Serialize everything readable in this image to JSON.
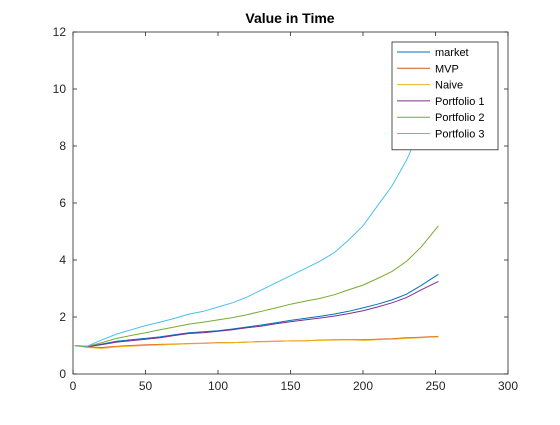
{
  "chart_data": {
    "type": "line",
    "title": "Value in Time",
    "xlabel": "",
    "ylabel": "",
    "xlim": [
      0,
      300
    ],
    "ylim": [
      0,
      12
    ],
    "xticks": [
      0,
      50,
      100,
      150,
      200,
      250,
      300
    ],
    "yticks": [
      0,
      2,
      4,
      6,
      8,
      10,
      12
    ],
    "grid": false,
    "legend_position": "top-right",
    "series": [
      {
        "name": "market",
        "color": "#0072BD",
        "x": [
          1,
          10,
          20,
          30,
          40,
          50,
          60,
          70,
          80,
          90,
          100,
          110,
          120,
          130,
          140,
          150,
          160,
          170,
          180,
          190,
          200,
          210,
          220,
          230,
          240,
          252
        ],
        "y": [
          1.0,
          0.97,
          1.05,
          1.15,
          1.2,
          1.25,
          1.3,
          1.38,
          1.45,
          1.48,
          1.52,
          1.58,
          1.65,
          1.72,
          1.8,
          1.88,
          1.95,
          2.02,
          2.1,
          2.2,
          2.32,
          2.45,
          2.6,
          2.8,
          3.1,
          3.5
        ]
      },
      {
        "name": "MVP",
        "color": "#D95319",
        "x": [
          1,
          10,
          20,
          30,
          40,
          50,
          60,
          70,
          80,
          90,
          100,
          110,
          120,
          130,
          140,
          150,
          160,
          170,
          180,
          190,
          200,
          210,
          220,
          230,
          240,
          252
        ],
        "y": [
          1.0,
          0.95,
          0.93,
          0.97,
          1.0,
          1.02,
          1.04,
          1.05,
          1.07,
          1.08,
          1.1,
          1.1,
          1.12,
          1.14,
          1.15,
          1.16,
          1.17,
          1.19,
          1.2,
          1.21,
          1.2,
          1.22,
          1.24,
          1.27,
          1.29,
          1.32
        ]
      },
      {
        "name": "Naive",
        "color": "#EDB120",
        "x": [
          1,
          10,
          20,
          30,
          40,
          50,
          60,
          70,
          80,
          90,
          100,
          110,
          120,
          130,
          140,
          150,
          160,
          170,
          180,
          190,
          200,
          210,
          220,
          230,
          240,
          252
        ],
        "y": [
          1.0,
          0.93,
          0.9,
          0.95,
          0.98,
          1.0,
          1.02,
          1.04,
          1.06,
          1.07,
          1.09,
          1.1,
          1.12,
          1.13,
          1.14,
          1.16,
          1.17,
          1.18,
          1.19,
          1.2,
          1.18,
          1.2,
          1.22,
          1.25,
          1.27,
          1.3
        ]
      },
      {
        "name": "Portfolio 1",
        "color": "#7E2F8E",
        "x": [
          1,
          10,
          20,
          30,
          40,
          50,
          60,
          70,
          80,
          90,
          100,
          110,
          120,
          130,
          140,
          150,
          160,
          170,
          180,
          190,
          200,
          210,
          220,
          230,
          240,
          252
        ],
        "y": [
          1.0,
          0.96,
          1.03,
          1.12,
          1.17,
          1.22,
          1.27,
          1.35,
          1.42,
          1.45,
          1.5,
          1.55,
          1.62,
          1.68,
          1.76,
          1.83,
          1.9,
          1.96,
          2.03,
          2.12,
          2.22,
          2.35,
          2.5,
          2.68,
          2.95,
          3.25
        ]
      },
      {
        "name": "Portfolio 2",
        "color": "#77AC30",
        "x": [
          1,
          10,
          20,
          30,
          40,
          50,
          60,
          70,
          80,
          90,
          100,
          110,
          120,
          130,
          140,
          150,
          160,
          170,
          180,
          190,
          200,
          210,
          220,
          230,
          240,
          252
        ],
        "y": [
          1.0,
          0.97,
          1.1,
          1.25,
          1.35,
          1.45,
          1.55,
          1.65,
          1.75,
          1.82,
          1.9,
          1.98,
          2.08,
          2.2,
          2.32,
          2.45,
          2.55,
          2.65,
          2.78,
          2.95,
          3.12,
          3.35,
          3.6,
          3.95,
          4.45,
          5.2
        ]
      },
      {
        "name": "Portfolio 3",
        "color": "#4DBEEE",
        "x": [
          1,
          10,
          20,
          30,
          40,
          50,
          60,
          70,
          80,
          90,
          100,
          110,
          120,
          130,
          140,
          150,
          160,
          170,
          180,
          190,
          200,
          210,
          220,
          230,
          237
        ],
        "y": [
          1.0,
          0.98,
          1.2,
          1.4,
          1.55,
          1.7,
          1.82,
          1.95,
          2.1,
          2.2,
          2.35,
          2.5,
          2.7,
          2.95,
          3.2,
          3.45,
          3.7,
          3.95,
          4.25,
          4.7,
          5.2,
          5.9,
          6.6,
          7.5,
          8.3
        ]
      }
    ]
  }
}
